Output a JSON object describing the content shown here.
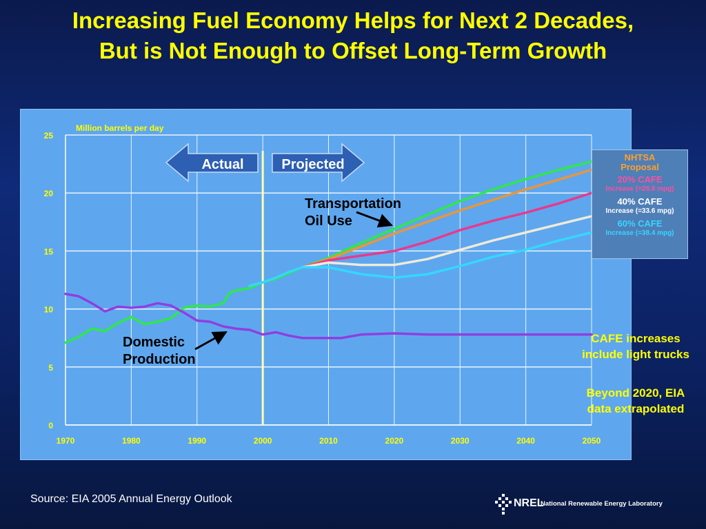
{
  "slide": {
    "title_line1": "Increasing Fuel Economy Helps for Next 2 Decades,",
    "title_line2": "But is Not Enough to Offset Long-Term Growth",
    "source": "Source: EIA 2005 Annual Energy Outlook",
    "logo_text": "NREL",
    "logo_subtitle": "National Renewable Energy Laboratory"
  },
  "legend": {
    "header_line1": "NHTSA",
    "header_line2": "Proposal",
    "header_color": "#ff9f2e",
    "items": [
      {
        "label": "20% CAFE",
        "sub": "Increase (=28.8 mpg)",
        "color": "#ff4fa3"
      },
      {
        "label": "40% CAFE",
        "sub": "Increase (=33.6 mpg)",
        "color": "#ffffff"
      },
      {
        "label": "60% CAFE",
        "sub": "Increase (=38.4 mpg)",
        "color": "#35d7ff"
      }
    ]
  },
  "notes": {
    "cafe_line1": "CAFE increases",
    "cafe_line2": "include light trucks",
    "eia_line1": "Beyond 2020, EIA",
    "eia_line2": "data extrapolated"
  },
  "chart_data": {
    "type": "line",
    "ylabel": "Million barrels per day",
    "ylim": [
      0,
      25
    ],
    "xlim": [
      1970,
      2050
    ],
    "y_ticks": [
      "0",
      "5",
      "10",
      "15",
      "20",
      "25"
    ],
    "x_ticks": [
      "1970",
      "1980",
      "1990",
      "2000",
      "2010",
      "2020",
      "2030",
      "2040",
      "2050"
    ],
    "grid": true,
    "divider_year": 2000,
    "arrows": {
      "actual": "Actual",
      "projected": "Projected"
    },
    "annotations": {
      "transport_line1": "Transportation",
      "transport_line2": "Oil Use",
      "domestic_line1": "Domestic",
      "domestic_line2": "Production"
    },
    "series": [
      {
        "key": "transport",
        "color": "#2ee84a",
        "x": [
          1970,
          1972,
          1974,
          1976,
          1978,
          1980,
          1982,
          1984,
          1986,
          1988,
          1990,
          1992,
          1994,
          1995,
          1996,
          1998,
          2000,
          2002,
          2004,
          2006,
          2008,
          2010,
          2015,
          2020,
          2025,
          2030,
          2035,
          2040,
          2045,
          2050
        ],
        "y": [
          7.1,
          7.6,
          8.3,
          8.1,
          8.8,
          9.3,
          8.7,
          8.9,
          9.2,
          10.1,
          10.3,
          10.2,
          10.5,
          11.4,
          11.6,
          11.8,
          12.3,
          12.6,
          13.1,
          13.6,
          14.0,
          14.4,
          15.7,
          16.9,
          18.1,
          19.3,
          20.3,
          21.2,
          22.0,
          22.7
        ]
      },
      {
        "key": "nhtsa",
        "color": "#e8963a",
        "x": [
          2006,
          2010,
          2020,
          2030,
          2040,
          2050
        ],
        "y": [
          13.6,
          14.3,
          16.5,
          18.5,
          20.3,
          22.0
        ]
      },
      {
        "key": "cafe20",
        "color": "#e8398e",
        "x": [
          2006,
          2010,
          2015,
          2020,
          2025,
          2030,
          2035,
          2040,
          2045,
          2050
        ],
        "y": [
          13.6,
          14.2,
          14.6,
          15.0,
          15.8,
          16.8,
          17.6,
          18.3,
          19.1,
          20.0
        ]
      },
      {
        "key": "cafe40",
        "color": "#f0ead8",
        "x": [
          2006,
          2010,
          2015,
          2020,
          2025,
          2030,
          2035,
          2040,
          2045,
          2050
        ],
        "y": [
          13.6,
          14.0,
          13.8,
          13.8,
          14.3,
          15.1,
          15.9,
          16.6,
          17.3,
          18.0
        ]
      },
      {
        "key": "cafe60",
        "color": "#35d7ff",
        "x": [
          1998,
          2000,
          2002,
          2004,
          2006,
          2010,
          2015,
          2020,
          2025,
          2030,
          2035,
          2040,
          2045,
          2050
        ],
        "y": [
          12.0,
          12.3,
          12.7,
          13.2,
          13.6,
          13.6,
          13.0,
          12.7,
          13.0,
          13.7,
          14.5,
          15.1,
          15.9,
          16.6
        ]
      },
      {
        "key": "domestic",
        "color": "#8f3fe0",
        "x": [
          1970,
          1972,
          1974,
          1976,
          1978,
          1980,
          1982,
          1984,
          1986,
          1988,
          1990,
          1992,
          1994,
          1996,
          1998,
          2000,
          2002,
          2004,
          2006,
          2008,
          2010,
          2012,
          2015,
          2020,
          2025,
          2030,
          2040,
          2050
        ],
        "y": [
          11.3,
          11.1,
          10.5,
          9.8,
          10.2,
          10.1,
          10.2,
          10.5,
          10.3,
          9.7,
          9.0,
          8.9,
          8.5,
          8.3,
          8.2,
          7.8,
          8.0,
          7.7,
          7.5,
          7.5,
          7.5,
          7.5,
          7.8,
          7.9,
          7.8,
          7.8,
          7.8,
          7.8
        ]
      }
    ]
  }
}
